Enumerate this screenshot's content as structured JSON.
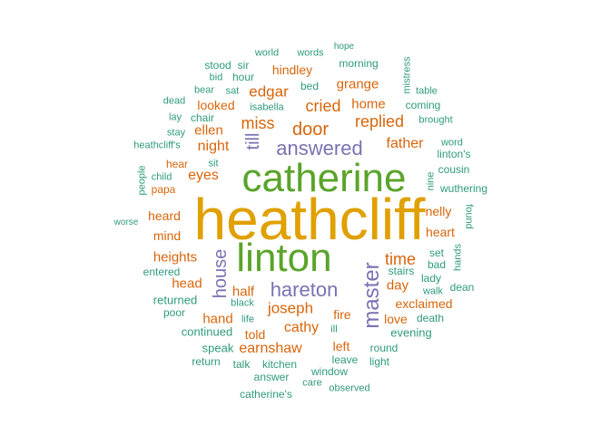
{
  "colors": {
    "gold": "#e0a000",
    "green": "#5aa42a",
    "purple": "#7872b2",
    "orange": "#d9650a",
    "teal": "#2f9a7e"
  },
  "words": [
    {
      "t": "heathcliff",
      "c": "gold"
    },
    {
      "t": "catherine",
      "c": "green"
    },
    {
      "t": "linton",
      "c": "green"
    },
    {
      "t": "master",
      "c": "purple"
    },
    {
      "t": "hareton",
      "c": "purple"
    },
    {
      "t": "answered",
      "c": "purple"
    },
    {
      "t": "house",
      "c": "purple"
    },
    {
      "t": "till",
      "c": "purple"
    },
    {
      "t": "door",
      "c": "orange"
    },
    {
      "t": "miss",
      "c": "orange"
    },
    {
      "t": "replied",
      "c": "orange"
    },
    {
      "t": "cried",
      "c": "orange"
    },
    {
      "t": "edgar",
      "c": "orange"
    },
    {
      "t": "time",
      "c": "orange"
    },
    {
      "t": "joseph",
      "c": "orange"
    },
    {
      "t": "cathy",
      "c": "orange"
    },
    {
      "t": "earnshaw",
      "c": "orange"
    },
    {
      "t": "eyes",
      "c": "orange"
    },
    {
      "t": "night",
      "c": "orange"
    },
    {
      "t": "father",
      "c": "orange"
    },
    {
      "t": "grange",
      "c": "orange"
    },
    {
      "t": "ellen",
      "c": "orange"
    },
    {
      "t": "home",
      "c": "orange"
    },
    {
      "t": "heights",
      "c": "orange"
    },
    {
      "t": "heard",
      "c": "orange"
    },
    {
      "t": "nelly",
      "c": "orange"
    },
    {
      "t": "heart",
      "c": "orange"
    },
    {
      "t": "day",
      "c": "orange"
    },
    {
      "t": "head",
      "c": "orange"
    },
    {
      "t": "half",
      "c": "orange"
    },
    {
      "t": "hand",
      "c": "orange"
    },
    {
      "t": "exclaimed",
      "c": "orange"
    },
    {
      "t": "love",
      "c": "orange"
    },
    {
      "t": "told",
      "c": "orange"
    },
    {
      "t": "fire",
      "c": "orange"
    },
    {
      "t": "left",
      "c": "orange"
    },
    {
      "t": "hindley",
      "c": "orange"
    },
    {
      "t": "looked",
      "c": "orange"
    },
    {
      "t": "mind",
      "c": "orange"
    },
    {
      "t": "hear",
      "c": "orange"
    },
    {
      "t": "papa",
      "c": "orange"
    },
    {
      "t": "world",
      "c": "teal"
    },
    {
      "t": "words",
      "c": "teal"
    },
    {
      "t": "hope",
      "c": "teal"
    },
    {
      "t": "stood",
      "c": "teal"
    },
    {
      "t": "sir",
      "c": "teal"
    },
    {
      "t": "bid",
      "c": "teal"
    },
    {
      "t": "hour",
      "c": "teal"
    },
    {
      "t": "morning",
      "c": "teal"
    },
    {
      "t": "mistress",
      "c": "teal"
    },
    {
      "t": "dead",
      "c": "teal"
    },
    {
      "t": "bear",
      "c": "teal"
    },
    {
      "t": "sat",
      "c": "teal"
    },
    {
      "t": "bed",
      "c": "teal"
    },
    {
      "t": "table",
      "c": "teal"
    },
    {
      "t": "isabella",
      "c": "teal"
    },
    {
      "t": "coming",
      "c": "teal"
    },
    {
      "t": "lay",
      "c": "teal"
    },
    {
      "t": "chair",
      "c": "teal"
    },
    {
      "t": "brought",
      "c": "teal"
    },
    {
      "t": "stay",
      "c": "teal"
    },
    {
      "t": "heathcliff's",
      "c": "teal"
    },
    {
      "t": "word",
      "c": "teal"
    },
    {
      "t": "linton's",
      "c": "teal"
    },
    {
      "t": "sit",
      "c": "teal"
    },
    {
      "t": "cousin",
      "c": "teal"
    },
    {
      "t": "people",
      "c": "teal"
    },
    {
      "t": "child",
      "c": "teal"
    },
    {
      "t": "nine",
      "c": "teal"
    },
    {
      "t": "wuthering",
      "c": "teal"
    },
    {
      "t": "worse",
      "c": "teal"
    },
    {
      "t": "found",
      "c": "teal"
    },
    {
      "t": "hands",
      "c": "teal"
    },
    {
      "t": "set",
      "c": "teal"
    },
    {
      "t": "bad",
      "c": "teal"
    },
    {
      "t": "entered",
      "c": "teal"
    },
    {
      "t": "stairs",
      "c": "teal"
    },
    {
      "t": "lady",
      "c": "teal"
    },
    {
      "t": "dean",
      "c": "teal"
    },
    {
      "t": "walk",
      "c": "teal"
    },
    {
      "t": "returned",
      "c": "teal"
    },
    {
      "t": "black",
      "c": "teal"
    },
    {
      "t": "poor",
      "c": "teal"
    },
    {
      "t": "life",
      "c": "teal"
    },
    {
      "t": "death",
      "c": "teal"
    },
    {
      "t": "continued",
      "c": "teal"
    },
    {
      "t": "ill",
      "c": "teal"
    },
    {
      "t": "evening",
      "c": "teal"
    },
    {
      "t": "speak",
      "c": "teal"
    },
    {
      "t": "round",
      "c": "teal"
    },
    {
      "t": "return",
      "c": "teal"
    },
    {
      "t": "talk",
      "c": "teal"
    },
    {
      "t": "kitchen",
      "c": "teal"
    },
    {
      "t": "leave",
      "c": "teal"
    },
    {
      "t": "light",
      "c": "teal"
    },
    {
      "t": "window",
      "c": "teal"
    },
    {
      "t": "answer",
      "c": "teal"
    },
    {
      "t": "care",
      "c": "teal"
    },
    {
      "t": "observed",
      "c": "teal"
    },
    {
      "t": "catherine's",
      "c": "teal"
    }
  ]
}
